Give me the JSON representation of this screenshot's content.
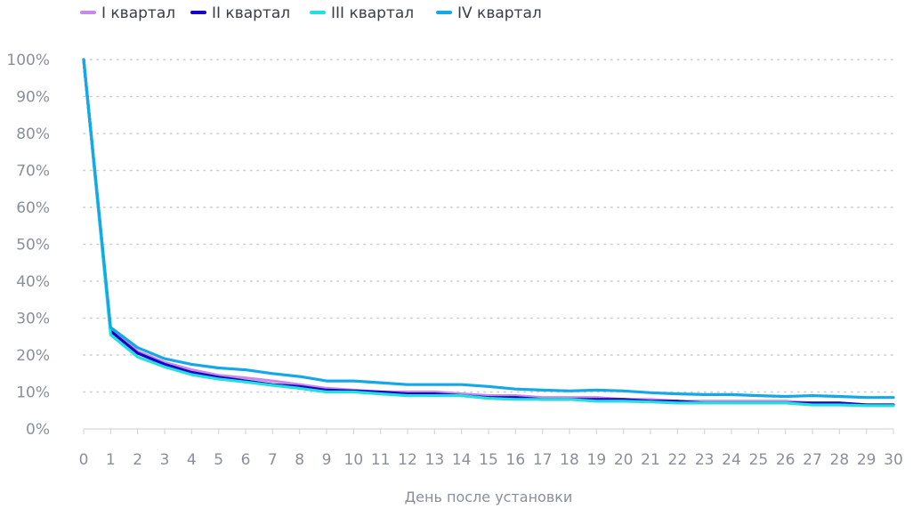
{
  "chart_data": {
    "type": "line",
    "title": "",
    "xlabel": "День после установки",
    "ylabel": "",
    "x": [
      0,
      1,
      2,
      3,
      4,
      5,
      6,
      7,
      8,
      9,
      10,
      11,
      12,
      13,
      14,
      15,
      16,
      17,
      18,
      19,
      20,
      21,
      22,
      23,
      24,
      25,
      26,
      27,
      28,
      29,
      30
    ],
    "ylim": [
      0,
      100
    ],
    "y_ticks": [
      "0%",
      "10%",
      "20%",
      "30%",
      "40%",
      "50%",
      "60%",
      "70%",
      "80%",
      "90%",
      "100%"
    ],
    "grid": true,
    "legend": "top-left",
    "series": [
      {
        "name": "I квартал",
        "color": "#c88ae8",
        "values": [
          100,
          27,
          21,
          18,
          16,
          14.5,
          13.8,
          13,
          12,
          11,
          10.5,
          10,
          10,
          10,
          9.5,
          9,
          9,
          8.5,
          8.5,
          8.5,
          8,
          8,
          7.5,
          7.5,
          7.5,
          7.5,
          7.5,
          7,
          7,
          6.5,
          6.5
        ]
      },
      {
        "name": "II квартал",
        "color": "#1a00c8",
        "values": [
          100,
          26.5,
          20.5,
          17.5,
          15.3,
          14,
          13,
          12,
          11.5,
          10.5,
          10.3,
          10,
          9.5,
          9.5,
          9,
          8.5,
          8.5,
          8,
          8,
          8,
          8,
          7.5,
          7.5,
          7,
          7,
          7,
          7,
          7,
          7,
          6.5,
          6.5
        ]
      },
      {
        "name": "III квартал",
        "color": "#22e0dc",
        "values": [
          100,
          25.5,
          19.5,
          16.8,
          14.7,
          13.5,
          12.7,
          11.8,
          11,
          10,
          10,
          9.5,
          9,
          9,
          9,
          8.3,
          8,
          8,
          8,
          7.5,
          7.5,
          7.3,
          7,
          7,
          7,
          7,
          7,
          6.5,
          6.5,
          6.3,
          6.3
        ]
      },
      {
        "name": "IV квартал",
        "color": "#14a8e8",
        "values": [
          100,
          27.5,
          22,
          19,
          17.5,
          16.5,
          16,
          15,
          14.2,
          13,
          13,
          12.5,
          12,
          12,
          12,
          11.5,
          10.8,
          10.5,
          10.3,
          10.5,
          10.3,
          9.8,
          9.5,
          9.3,
          9.3,
          9,
          8.8,
          9,
          8.8,
          8.5,
          8.5
        ]
      }
    ]
  }
}
